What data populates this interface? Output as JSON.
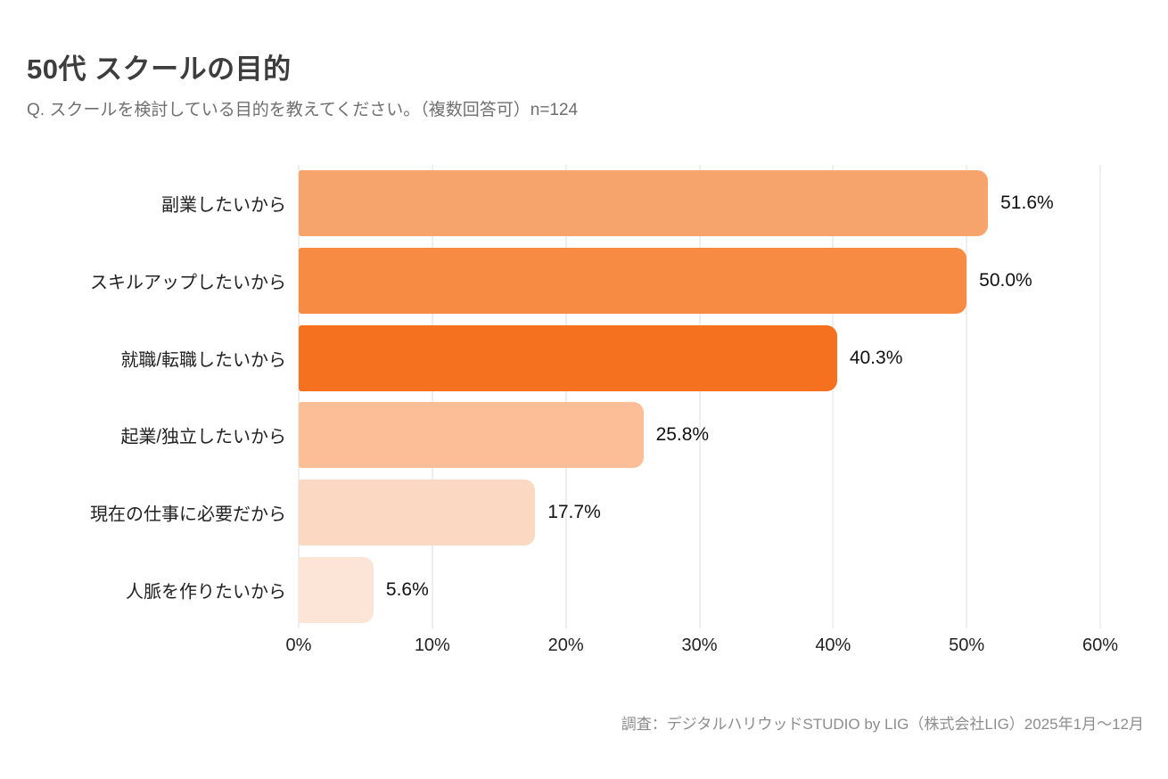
{
  "header": {
    "title": "50代 スクールの目的",
    "subtitle": "Q. スクールを検討している目的を教えてください。（複数回答可）n=124"
  },
  "footer": {
    "source": "調査：デジタルハリウッドSTUDIO by LIG（株式会社LIG）2025年1月〜12月"
  },
  "chart_data": {
    "type": "bar",
    "orientation": "horizontal",
    "title": "50代 スクールの目的",
    "subtitle": "Q. スクールを検討している目的を教えてください。（複数回答可）n=124",
    "n": 124,
    "categories": [
      "副業したいから",
      "スキルアップしたいから",
      "就職/転職したいから",
      "起業/独立したいから",
      "現在の仕事に必要だから",
      "人脈を作りたいから"
    ],
    "values": [
      51.6,
      50.0,
      40.3,
      25.8,
      17.7,
      5.6
    ],
    "value_labels": [
      "51.6%",
      "50.0%",
      "40.3%",
      "25.8%",
      "17.7%",
      "5.6%"
    ],
    "bar_colors": [
      "#F6A46B",
      "#F78B44",
      "#F57120",
      "#FBBE97",
      "#FBD8C1",
      "#FCE5D6"
    ],
    "xlabel": "",
    "ylabel": "",
    "xlim": [
      0,
      60
    ],
    "x_ticks": [
      "0%",
      "10%",
      "20%",
      "30%",
      "40%",
      "50%",
      "60%"
    ],
    "grid": "vertical",
    "gridline_color": "#dedede",
    "legend": "none",
    "background_color": "#ffffff"
  }
}
